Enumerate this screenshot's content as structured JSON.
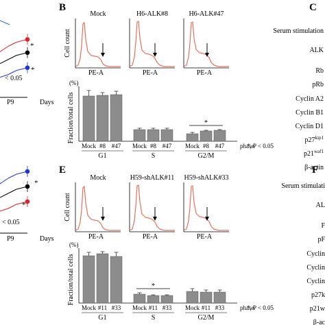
{
  "panel_labels": {
    "b": "B",
    "c": "C",
    "e": "E",
    "f": "F"
  },
  "left_panels": {
    "top": {
      "sig": "*",
      "p_label": "< 0.05",
      "tick": "P9",
      "days": "Days"
    },
    "bottom": {
      "sig": "*",
      "p_label": "< 0.05",
      "tick": "P9",
      "days": "Days"
    }
  },
  "panel_b": {
    "hist_titles": [
      "Mock",
      "H6-ALK#8",
      "H6-ALK#47"
    ],
    "hist_ylabel": "Cell count",
    "hist_xlabel": "PE-A",
    "bar_unit": "(%)",
    "bar_ylabel": "Fraction/total cells",
    "sig_note": "*, P < 0.05",
    "sig_star": "*"
  },
  "panel_e": {
    "hist_titles": [
      "Mock",
      "H59-shALK#11",
      "H59-shALK#33"
    ],
    "hist_ylabel": "Cell count",
    "hist_xlabel": "PE-A",
    "bar_unit": "(%)",
    "bar_ylabel": "Fraction/total cells",
    "sig_note": "*, P < 0.05",
    "sig_star": "*"
  },
  "panel_c_labels": [
    "Serum stimulation",
    "ALK",
    "Rb",
    "pRb",
    "Cyclin A2",
    "Cyclin B1",
    "Cyclin D1",
    "p27kip1",
    "p21waf1",
    "β-actin"
  ],
  "panel_f_labels": [
    "Serum stimulati",
    "AL",
    "F",
    "pF",
    "Cyclin",
    "Cyclin",
    "Cyclin",
    "p27k",
    "p21w",
    "β-ac"
  ],
  "colors": {
    "curve": "#e8705a",
    "bar": "#8c8c8c",
    "red": "#e0202a",
    "blue": "#2233dd",
    "black": "#000000"
  },
  "chart_data": [
    {
      "type": "bar",
      "panel": "B",
      "groups": [
        "G1",
        "S",
        "G2/M"
      ],
      "categories": [
        "Mock",
        "#8",
        "#47"
      ],
      "series": [
        {
          "values": [
            66,
            67,
            68
          ],
          "errors": [
            8,
            4,
            5
          ]
        },
        {
          "values": [
            17,
            17,
            17
          ],
          "errors": [
            2,
            2,
            2
          ]
        },
        {
          "values": [
            11,
            15,
            16
          ],
          "errors": [
            2,
            1,
            1
          ]
        }
      ],
      "xlabel": "phase",
      "ylabel": "Fraction/total cells",
      "ylim": [
        0,
        80
      ],
      "significance": [
        {
          "group": "G2/M",
          "label": "*"
        }
      ]
    },
    {
      "type": "bar",
      "panel": "E",
      "groups": [
        "G1",
        "S",
        "G2/M"
      ],
      "categories": [
        "Mock",
        "#11",
        "#33"
      ],
      "series": [
        {
          "values": [
            69,
            72,
            68
          ],
          "errors": [
            5,
            3,
            6
          ]
        },
        {
          "values": [
            13,
            11,
            11
          ],
          "errors": [
            2,
            1,
            1
          ]
        },
        {
          "values": [
            17,
            16,
            16
          ],
          "errors": [
            4,
            3,
            3
          ]
        }
      ],
      "xlabel": "phase",
      "ylabel": "Fraction/total cells",
      "ylim": [
        0,
        80
      ],
      "significance": [
        {
          "group": "S",
          "label": "*"
        }
      ]
    },
    {
      "type": "line",
      "panel": "A (cropped)",
      "x": [
        "P9"
      ],
      "series": [
        {
          "color": "red",
          "values": [
            3.0
          ]
        },
        {
          "color": "black",
          "values": [
            2.3
          ]
        },
        {
          "color": "blue",
          "values": [
            1.5
          ]
        }
      ],
      "xlabel": "Days"
    },
    {
      "type": "line",
      "panel": "D (cropped)",
      "x": [
        "P9"
      ],
      "series": [
        {
          "color": "blue",
          "values": [
            3.2
          ]
        },
        {
          "color": "black",
          "values": [
            2.4
          ]
        },
        {
          "color": "red",
          "values": [
            1.6
          ]
        }
      ],
      "xlabel": "Days"
    }
  ]
}
